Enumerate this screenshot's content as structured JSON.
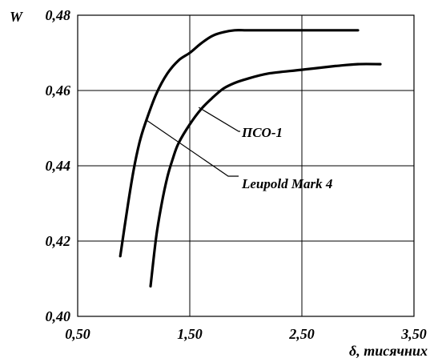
{
  "chart_data": {
    "type": "line",
    "title": "",
    "xlabel": "δ, тисячних",
    "ylabel": "W",
    "xlim": [
      0.5,
      3.5
    ],
    "ylim": [
      0.4,
      0.48
    ],
    "x_ticks": [
      "0,50",
      "1,50",
      "2,50",
      "3,50"
    ],
    "y_ticks": [
      "0,40",
      "0,42",
      "0,44",
      "0,46",
      "0,48"
    ],
    "grid": true,
    "series": [
      {
        "name": "Leupold Mark 4",
        "x": [
          0.88,
          0.95,
          1.0,
          1.05,
          1.1,
          1.2,
          1.3,
          1.4,
          1.5,
          1.6,
          1.7,
          1.8,
          1.9,
          2.0,
          2.1,
          2.5,
          3.0
        ],
        "y": [
          0.416,
          0.43,
          0.439,
          0.446,
          0.451,
          0.459,
          0.4645,
          0.468,
          0.47,
          0.4725,
          0.4745,
          0.4755,
          0.476,
          0.476,
          0.476,
          0.476,
          0.476
        ]
      },
      {
        "name": "ПСО-1",
        "x": [
          1.15,
          1.2,
          1.25,
          1.3,
          1.35,
          1.4,
          1.5,
          1.6,
          1.7,
          1.8,
          1.9,
          2.0,
          2.2,
          2.5,
          2.8,
          3.0,
          3.2
        ],
        "y": [
          0.408,
          0.421,
          0.43,
          0.437,
          0.442,
          0.446,
          0.451,
          0.455,
          0.458,
          0.4605,
          0.462,
          0.463,
          0.4645,
          0.4655,
          0.4665,
          0.467,
          0.467
        ]
      }
    ],
    "annotations": [
      {
        "text": "ПСО-1",
        "target_series": "ПСО-1",
        "point": [
          1.58,
          0.4555
        ]
      },
      {
        "text": "Leupold Mark 4",
        "target_series": "Leupold Mark 4",
        "point": [
          1.12,
          0.452
        ]
      }
    ]
  }
}
